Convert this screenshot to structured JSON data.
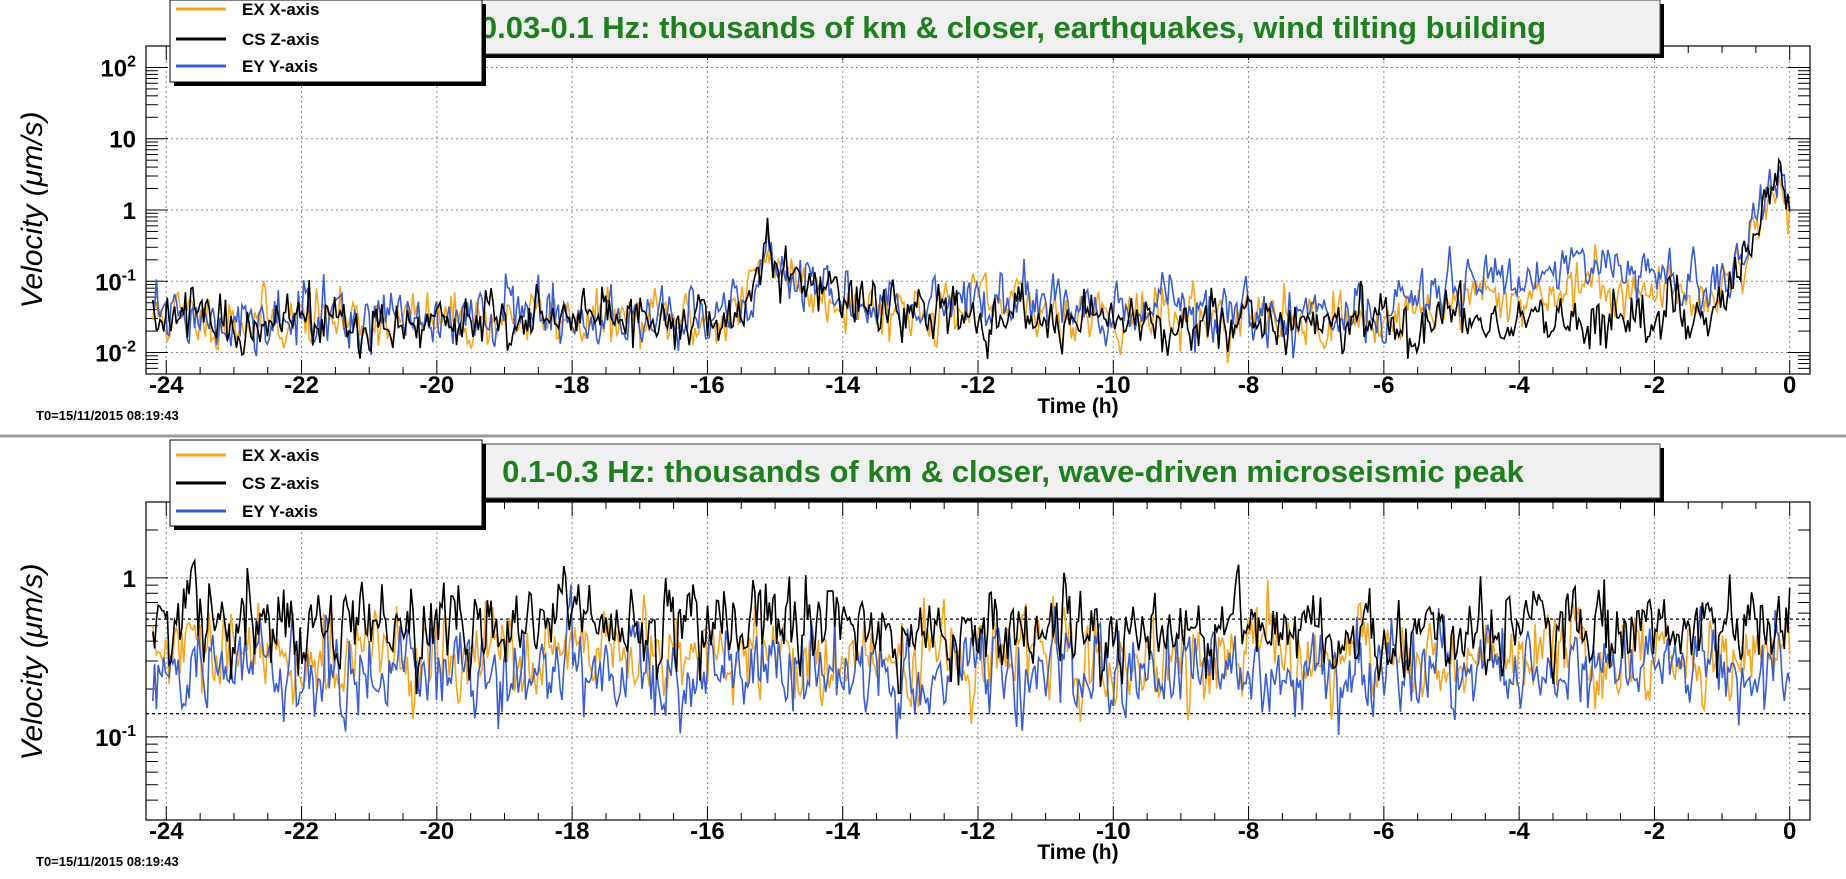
{
  "colors": {
    "ex": "#f5a623",
    "cs": "#000000",
    "ey": "#3a5fcd",
    "title_text": "#1e7f1e",
    "title_box": "#f0f0f0"
  },
  "legend": [
    "EX X-axis",
    "CS Z-axis",
    "EY Y-axis"
  ],
  "chart_data": [
    {
      "type": "line",
      "title": "0.03-0.1 Hz: thousands of km & closer, earthquakes, wind tilting building",
      "xlabel": "Time (h)",
      "ylabel": "Velocity (μm/s)",
      "ylabel_plain": "Velocity",
      "ylabel_unit": "(μm/s)",
      "t0_label": "T0=15/11/2015 08:19:43",
      "xlim": [
        -24.3,
        0.3
      ],
      "ylim": [
        0.005,
        200
      ],
      "yscale": "log",
      "xticks": [
        -24,
        -22,
        -20,
        -18,
        -16,
        -14,
        -12,
        -10,
        -8,
        -6,
        -4,
        -2,
        0
      ],
      "ytick_labels": [
        {
          "value": 0.01,
          "base": "10",
          "exp": "-2"
        },
        {
          "value": 0.1,
          "base": "10",
          "exp": "-1"
        },
        {
          "value": 1,
          "base": "1",
          "exp": ""
        },
        {
          "value": 10,
          "base": "10",
          "exp": ""
        },
        {
          "value": 100,
          "base": "10",
          "exp": "2"
        }
      ],
      "grid": true,
      "legend_position": "top-left",
      "series": [
        {
          "name": "EX X-axis",
          "color_key": "ex",
          "x": [
            -24.2,
            -23,
            -22,
            -21,
            -20,
            -19,
            -18,
            -17,
            -16,
            -15.6,
            -15.3,
            -15.1,
            -14.8,
            -14.5,
            -14,
            -13.5,
            -13,
            -12,
            -11,
            -10,
            -9,
            -8,
            -7,
            -6,
            -5.5,
            -5,
            -4,
            -3,
            -2,
            -1.5,
            -1,
            -0.6,
            -0.3,
            -0.15,
            0
          ],
          "y": [
            0.032,
            0.03,
            0.03,
            0.028,
            0.028,
            0.03,
            0.03,
            0.028,
            0.028,
            0.035,
            0.1,
            0.3,
            0.12,
            0.08,
            0.06,
            0.045,
            0.04,
            0.045,
            0.04,
            0.035,
            0.033,
            0.03,
            0.03,
            0.028,
            0.04,
            0.05,
            0.06,
            0.09,
            0.07,
            0.06,
            0.08,
            0.3,
            1.5,
            2.5,
            0.9
          ]
        },
        {
          "name": "CS Z-axis",
          "color_key": "cs",
          "x": [
            -24.2,
            -23,
            -22,
            -21,
            -20,
            -19,
            -18,
            -17,
            -16,
            -15.6,
            -15.3,
            -15.1,
            -14.8,
            -14.5,
            -14,
            -13.5,
            -13,
            -12,
            -11,
            -10,
            -9,
            -8,
            -7,
            -6,
            -5.5,
            -5,
            -4,
            -3,
            -2,
            -1.5,
            -1,
            -0.6,
            -0.3,
            -0.15,
            0
          ],
          "y": [
            0.03,
            0.028,
            0.028,
            0.027,
            0.027,
            0.028,
            0.028,
            0.027,
            0.027,
            0.03,
            0.09,
            0.25,
            0.12,
            0.08,
            0.06,
            0.045,
            0.035,
            0.03,
            0.03,
            0.03,
            0.028,
            0.028,
            0.028,
            0.027,
            0.027,
            0.028,
            0.028,
            0.028,
            0.03,
            0.03,
            0.04,
            0.3,
            2,
            3.5,
            1.0
          ]
        },
        {
          "name": "EY Y-axis",
          "color_key": "ey",
          "x": [
            -24.2,
            -23,
            -22,
            -21,
            -20,
            -19,
            -18,
            -17,
            -16,
            -15.6,
            -15.3,
            -15.1,
            -14.8,
            -14.5,
            -14,
            -13.5,
            -13,
            -12,
            -11,
            -10,
            -9,
            -8,
            -7,
            -6,
            -5.5,
            -5,
            -4,
            -3,
            -2,
            -1.5,
            -1,
            -0.6,
            -0.3,
            -0.15,
            0
          ],
          "y": [
            0.035,
            0.03,
            0.03,
            0.028,
            0.028,
            0.03,
            0.03,
            0.028,
            0.028,
            0.035,
            0.1,
            0.3,
            0.12,
            0.08,
            0.06,
            0.045,
            0.05,
            0.06,
            0.055,
            0.045,
            0.04,
            0.035,
            0.033,
            0.03,
            0.06,
            0.09,
            0.14,
            0.15,
            0.12,
            0.1,
            0.11,
            0.4,
            2,
            3,
            1.2
          ]
        }
      ]
    },
    {
      "type": "line",
      "title": "0.1-0.3 Hz: thousands of km & closer, wave-driven microseismic peak",
      "xlabel": "Time (h)",
      "ylabel": "Velocity (μm/s)",
      "ylabel_plain": "Velocity",
      "ylabel_unit": "(μm/s)",
      "t0_label": "T0=15/11/2015 08:19:43",
      "xlim": [
        -24.3,
        0.3
      ],
      "ylim": [
        0.03,
        3
      ],
      "yscale": "log",
      "xticks": [
        -24,
        -22,
        -20,
        -18,
        -16,
        -14,
        -12,
        -10,
        -8,
        -6,
        -4,
        -2,
        0
      ],
      "ytick_labels": [
        {
          "value": 0.1,
          "base": "10",
          "exp": "-1"
        },
        {
          "value": 1,
          "base": "1",
          "exp": ""
        }
      ],
      "reference_lines": [
        0.14,
        0.55
      ],
      "grid": true,
      "legend_position": "top-left",
      "series": [
        {
          "name": "EX X-axis",
          "color_key": "ex",
          "x": [
            -24.2,
            -22,
            -20,
            -18,
            -16,
            -14,
            -12,
            -10,
            -8,
            -6,
            -4,
            -2,
            0
          ],
          "y": [
            0.33,
            0.32,
            0.32,
            0.31,
            0.31,
            0.3,
            0.31,
            0.3,
            0.31,
            0.31,
            0.32,
            0.33,
            0.35
          ]
        },
        {
          "name": "CS Z-axis",
          "color_key": "cs",
          "x": [
            -24.2,
            -22,
            -20,
            -18,
            -16,
            -14,
            -12,
            -10,
            -8,
            -6,
            -4,
            -2,
            0
          ],
          "y": [
            0.52,
            0.5,
            0.5,
            0.48,
            0.48,
            0.47,
            0.47,
            0.46,
            0.47,
            0.48,
            0.48,
            0.5,
            0.55
          ]
        },
        {
          "name": "EY Y-axis",
          "color_key": "ey",
          "x": [
            -24.2,
            -22,
            -20,
            -18,
            -16,
            -14,
            -12,
            -10,
            -8,
            -6,
            -4,
            -2,
            0
          ],
          "y": [
            0.26,
            0.25,
            0.25,
            0.25,
            0.25,
            0.25,
            0.25,
            0.25,
            0.25,
            0.25,
            0.26,
            0.27,
            0.28
          ]
        }
      ]
    }
  ]
}
